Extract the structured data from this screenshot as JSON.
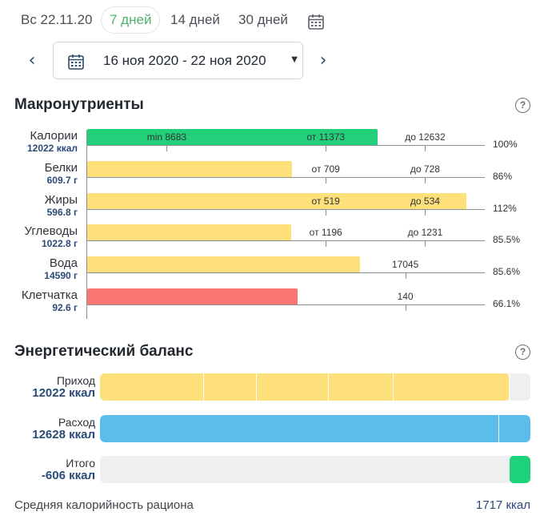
{
  "tabs": [
    {
      "label": "Вс 22.11.20",
      "active": false
    },
    {
      "label": "7 дней",
      "active": true
    },
    {
      "label": "14 дней",
      "active": false
    },
    {
      "label": "30 дней",
      "active": false
    }
  ],
  "date_range": {
    "label": "16 ноя 2020 - 22 ноя 2020",
    "prev_icon": "chevron-left-icon",
    "next_icon": "chevron-right-icon",
    "caret_icon": "caret-down-icon"
  },
  "macros_section": {
    "title": "Макронутриенты"
  },
  "macros": [
    {
      "name": "Калории",
      "amount": "12022 ккал",
      "color": "#22d07a",
      "fill": 0.73,
      "ticks": [
        {
          "pos": 0.2,
          "label": "min 8683"
        },
        {
          "pos": 0.6,
          "label": "от 11373"
        },
        {
          "pos": 0.85,
          "label": "до 12632"
        }
      ],
      "pct": "100%"
    },
    {
      "name": "Белки",
      "amount": "609.7 г",
      "color": "#fde07a",
      "fill": 0.515,
      "ticks": [
        {
          "pos": 0.6,
          "label": "от 709"
        },
        {
          "pos": 0.85,
          "label": "до 728"
        }
      ],
      "pct": "86%"
    },
    {
      "name": "Жиры",
      "amount": "596.8 г",
      "color": "#fde07a",
      "fill": 0.953,
      "ticks": [
        {
          "pos": 0.6,
          "label": "от 519"
        },
        {
          "pos": 0.85,
          "label": "до 534"
        }
      ],
      "pct": "112%"
    },
    {
      "name": "Углеводы",
      "amount": "1022.8 г",
      "color": "#fde07a",
      "fill": 0.513,
      "ticks": [
        {
          "pos": 0.6,
          "label": "от 1196"
        },
        {
          "pos": 0.85,
          "label": "до 1231"
        }
      ],
      "pct": "85.5%"
    },
    {
      "name": "Вода",
      "amount": "14590 г",
      "color": "#fde07a",
      "fill": 0.687,
      "ticks": [
        {
          "pos": 0.8,
          "label": "17045"
        }
      ],
      "pct": "85.6%"
    },
    {
      "name": "Клетчатка",
      "amount": "92.6 г",
      "color": "#f87674",
      "fill": 0.53,
      "ticks": [
        {
          "pos": 0.8,
          "label": "140"
        }
      ],
      "pct": "66.1%"
    }
  ],
  "balance_section": {
    "title": "Энергетический баланс"
  },
  "balance": [
    {
      "key": "income",
      "name": "Приход",
      "value": "12022 ккал",
      "color": "#fde07a",
      "fill": 0.951,
      "segments": [
        0.24,
        0.363,
        0.53,
        0.68,
        0.95
      ]
    },
    {
      "key": "expense",
      "name": "Расход",
      "value": "12628 ккал",
      "color": "#5bbde9",
      "fill": 1.0,
      "segments": [
        0.925
      ]
    },
    {
      "key": "total",
      "name": "Итого",
      "value": "-606 ккал",
      "color": "#1ed27b",
      "fill": 0.0,
      "segments": []
    }
  ],
  "average": {
    "label": "Средняя калорийность рациона",
    "value": "1717 ккал"
  }
}
